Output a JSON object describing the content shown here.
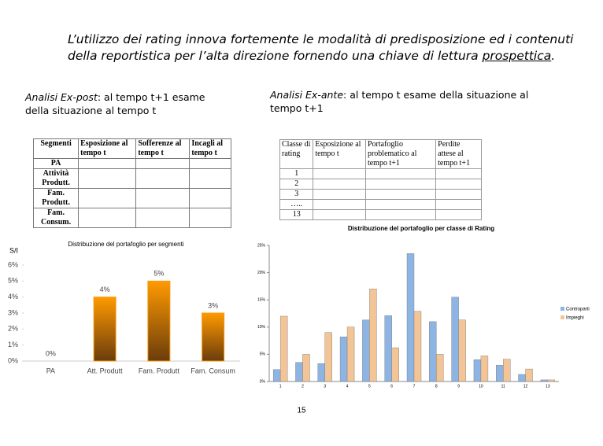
{
  "header": {
    "title": "L’utilizzo dei rating innova fortemente le modalità di predisposizione ed i contenuti della reportistica per l’alta direzione fornendo una chiave di lettura ",
    "title_underlined": "prospettica",
    "title_end": "."
  },
  "left": {
    "heading_em": "Analisi Ex-post",
    "heading_rest": ": al tempo t+1 esame della situazione al tempo t",
    "table": {
      "header": [
        "Segmenti",
        "Esposizione al tempo t",
        "Sofferenze al tempo t",
        "Incagli al tempo t"
      ],
      "row_labels": [
        "PA",
        "Attività Produtt.",
        "Fam. Produtt.",
        "Fam. Consum."
      ]
    }
  },
  "right": {
    "heading_em": "Analisi Ex-ante",
    "heading_rest": ": al tempo t esame della situazione al tempo t+1",
    "table": {
      "header": [
        "Classe di rating",
        "Esposizione al tempo t",
        "Portafoglio problematico al tempo t+1",
        "Perdite attese al tempo t+1"
      ],
      "row_labels": [
        "1",
        "2",
        "3",
        "…..",
        "13"
      ]
    }
  },
  "chart_data": [
    {
      "type": "bar",
      "title": "Distribuzione del portafoglio per segmenti",
      "y_label": "S/I",
      "categories": [
        "PA",
        "Att. Produtt",
        "Fam. Produtt",
        "Fam. Consum"
      ],
      "values": [
        0,
        4,
        5,
        3
      ],
      "value_labels": [
        "0%",
        "4%",
        "5%",
        "3%"
      ],
      "color": "#f59a0f",
      "ylim": [
        0,
        6
      ],
      "yticks": [
        {
          "value": 0,
          "label": "0%"
        },
        {
          "value": 1,
          "label": "1%"
        },
        {
          "value": 2,
          "label": "2%"
        },
        {
          "value": 3,
          "label": "3%"
        },
        {
          "value": 4,
          "label": "4%"
        },
        {
          "value": 5,
          "label": "5%"
        },
        {
          "value": 6,
          "label": "6%"
        }
      ]
    },
    {
      "type": "grouped-bar",
      "title": "Distribuzione del portafoglio per classe di Rating",
      "categories": [
        "1",
        "2",
        "3",
        "4",
        "5",
        "6",
        "7",
        "8",
        "9",
        "10",
        "11",
        "12",
        "13"
      ],
      "series": [
        {
          "name": "Controparti",
          "color": "#8db4e2",
          "values": [
            2.2,
            3.5,
            3.3,
            8.2,
            11.3,
            12.1,
            23.5,
            11,
            15.5,
            4,
            3,
            1.3,
            0.3
          ]
        },
        {
          "name": "Impieghi",
          "color": "#f2c496",
          "values": [
            12,
            5,
            9,
            10,
            17,
            6.2,
            12.9,
            5,
            11.3,
            4.7,
            4.1,
            2.3,
            0.3
          ]
        }
      ],
      "ylim": [
        0,
        25
      ],
      "yticks": [
        {
          "value": 0,
          "label": "0%"
        },
        {
          "value": 5,
          "label": "5%"
        },
        {
          "value": 10,
          "label": "10%"
        },
        {
          "value": 15,
          "label": "15%"
        },
        {
          "value": 20,
          "label": "20%"
        },
        {
          "value": 25,
          "label": "25%"
        }
      ],
      "legend": "right"
    }
  ],
  "footer": {
    "page_number": "15"
  }
}
